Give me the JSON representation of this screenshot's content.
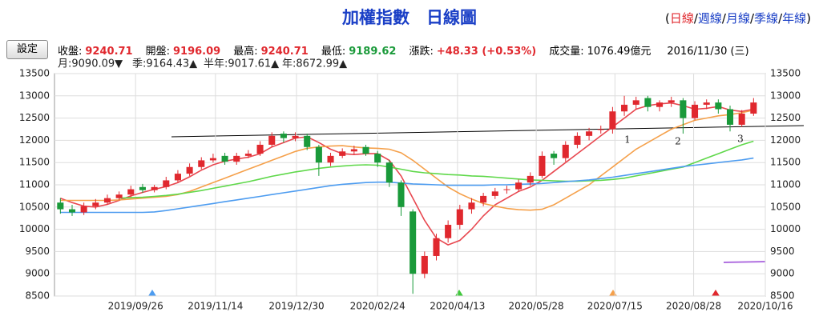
{
  "header": {
    "title": "加權指數　日線圖",
    "links": [
      "日線",
      "週線",
      "月線",
      "季線",
      "年線"
    ],
    "button": "設定",
    "info": [
      {
        "label": "收盤:",
        "value": "9240.71"
      },
      {
        "label": "開盤:",
        "value": "9196.09"
      },
      {
        "label": "最高:",
        "value": "9240.71"
      },
      {
        "label": "最低:",
        "value": "9189.62"
      },
      {
        "label": "漲跌:",
        "value": "+48.33  (+0.53%)"
      },
      {
        "label": "成交量:",
        "value": "1076.49億元"
      },
      {
        "label": "",
        "value": "2016/11/30 (三)"
      }
    ]
  },
  "chart_data": {
    "type": "candlestick",
    "x": [
      0,
      1,
      2,
      3,
      4,
      5,
      6,
      7,
      8,
      9,
      10,
      11,
      12,
      13,
      14,
      15,
      16,
      17,
      18,
      19,
      20,
      21,
      22,
      23,
      24,
      25,
      26,
      27,
      28,
      29,
      30,
      31,
      32,
      33,
      34,
      35,
      36,
      37,
      38,
      39,
      40,
      41,
      42,
      43,
      44,
      45,
      46,
      47,
      48,
      49,
      50,
      51,
      52,
      53,
      54,
      55,
      56,
      57,
      58,
      59
    ],
    "open": [
      10600,
      10450,
      10380,
      10520,
      10600,
      10700,
      10780,
      10950,
      10880,
      10950,
      11100,
      11250,
      11400,
      11550,
      11650,
      11520,
      11650,
      11700,
      11900,
      12150,
      12050,
      12100,
      11850,
      11500,
      11650,
      11750,
      11850,
      11700,
      11500,
      11050,
      10400,
      9000,
      9400,
      9800,
      10100,
      10450,
      10600,
      10750,
      10900,
      10900,
      11050,
      11200,
      11700,
      11600,
      11900,
      12100,
      12250,
      12250,
      12650,
      12800,
      12950,
      12750,
      12850,
      12900,
      12500,
      12800,
      12850,
      12700,
      12350,
      12600
    ],
    "high": [
      10700,
      10550,
      10600,
      10680,
      10780,
      10850,
      10980,
      11020,
      11000,
      11180,
      11330,
      11480,
      11620,
      11700,
      11720,
      11720,
      11780,
      11980,
      12180,
      12200,
      12180,
      12150,
      11900,
      11720,
      11820,
      11880,
      11900,
      11760,
      11560,
      11100,
      10450,
      9500,
      9900,
      10200,
      10550,
      10700,
      10820,
      10930,
      10980,
      11120,
      11280,
      11750,
      11760,
      11980,
      12180,
      12280,
      12330,
      12750,
      13000,
      12980,
      13000,
      12900,
      12980,
      12950,
      12880,
      12920,
      12920,
      12780,
      12680,
      12950
    ],
    "low": [
      10350,
      10300,
      10320,
      10450,
      10550,
      10650,
      10720,
      10820,
      10830,
      10900,
      11050,
      11200,
      11350,
      11500,
      11450,
      11450,
      11600,
      11650,
      11850,
      11950,
      11980,
      11780,
      11200,
      11420,
      11600,
      11680,
      11650,
      11400,
      10950,
      10300,
      8550,
      8900,
      9300,
      9700,
      10000,
      10350,
      10520,
      10680,
      10800,
      10850,
      10980,
      11150,
      11450,
      11520,
      11820,
      12000,
      12150,
      12150,
      12550,
      12700,
      12650,
      12650,
      12750,
      12150,
      12450,
      12700,
      12600,
      12200,
      12300,
      12550
    ],
    "close": [
      10450,
      10380,
      10520,
      10600,
      10700,
      10780,
      10900,
      10880,
      10950,
      11100,
      11250,
      11400,
      11550,
      11600,
      11520,
      11650,
      11700,
      11900,
      12100,
      12050,
      12100,
      11850,
      11500,
      11650,
      11750,
      11800,
      11700,
      11500,
      11050,
      10500,
      9000,
      9400,
      9800,
      10100,
      10450,
      10600,
      10750,
      10850,
      10900,
      11050,
      11200,
      11650,
      11600,
      11900,
      12100,
      12200,
      12250,
      12650,
      12800,
      12900,
      12750,
      12850,
      12900,
      12500,
      12800,
      12850,
      12700,
      12350,
      12600,
      12850
    ],
    "up_color": "#e0282e",
    "down_color": "#1a9a3a",
    "series": [
      {
        "name": "月:9090.09▼",
        "color": "#e8474f",
        "values": [
          10700,
          10600,
          10520,
          10500,
          10560,
          10650,
          10750,
          10830,
          10900,
          10960,
          11050,
          11180,
          11330,
          11450,
          11530,
          11580,
          11620,
          11700,
          11850,
          11950,
          12050,
          12080,
          11950,
          11800,
          11700,
          11680,
          11700,
          11700,
          11550,
          11200,
          10700,
          10200,
          9800,
          9650,
          9750,
          10000,
          10300,
          10550,
          10700,
          10850,
          10950,
          11100,
          11300,
          11500,
          11700,
          11900,
          12100,
          12300,
          12500,
          12700,
          12780,
          12820,
          12840,
          12780,
          12700,
          12720,
          12760,
          12680,
          12650,
          12700
        ]
      },
      {
        "name": "季:9164.43▲",
        "color": "#f5a04a",
        "values": [
          10650,
          10650,
          10650,
          10650,
          10650,
          10660,
          10680,
          10700,
          10720,
          10740,
          10780,
          10850,
          10950,
          11050,
          11150,
          11250,
          11350,
          11450,
          11550,
          11650,
          11750,
          11820,
          11850,
          11870,
          11880,
          11850,
          11830,
          11820,
          11800,
          11720,
          11550,
          11350,
          11150,
          10950,
          10800,
          10680,
          10580,
          10520,
          10470,
          10440,
          10430,
          10450,
          10550,
          10700,
          10850,
          11000,
          11200,
          11400,
          11600,
          11800,
          11950,
          12100,
          12250,
          12350,
          12450,
          12500,
          12550,
          12580,
          12620,
          12680
        ]
      },
      {
        "name": "半年:9017.61▲",
        "color": "#5fd84a",
        "values": [
          null,
          null,
          null,
          null,
          null,
          10700,
          10710,
          10720,
          10740,
          10760,
          10790,
          10830,
          10870,
          10920,
          10970,
          11020,
          11070,
          11130,
          11190,
          11240,
          11290,
          11330,
          11370,
          11400,
          11420,
          11440,
          11450,
          11440,
          11400,
          11350,
          11300,
          11270,
          11250,
          11230,
          11220,
          11200,
          11190,
          11170,
          11150,
          11130,
          11110,
          11100,
          11090,
          11080,
          11080,
          11090,
          11100,
          11120,
          11150,
          11200,
          11250,
          11300,
          11350,
          11400,
          11500,
          11600,
          11700,
          11800,
          11900,
          11980
        ]
      },
      {
        "name": "年:8672.99▲",
        "color": "#4d9cf0",
        "values": [
          10380,
          10380,
          10380,
          10380,
          10380,
          10380,
          10380,
          10380,
          10390,
          10420,
          10460,
          10500,
          10540,
          10580,
          10620,
          10660,
          10700,
          10740,
          10780,
          10820,
          10860,
          10900,
          10940,
          10980,
          11010,
          11030,
          11050,
          11060,
          11060,
          11040,
          11020,
          11010,
          11000,
          10990,
          10990,
          10990,
          10990,
          11000,
          11000,
          11010,
          11020,
          11030,
          11050,
          11070,
          11090,
          11110,
          11140,
          11170,
          11210,
          11250,
          11290,
          11330,
          11370,
          11410,
          11440,
          11470,
          11500,
          11530,
          11560,
          11600
        ]
      }
    ],
    "xlim": [
      -0.5,
      60
    ],
    "xticks": [
      {
        "value": 6.4,
        "label": "2019/09/26"
      },
      {
        "value": 13.2,
        "label": "2019/11/14"
      },
      {
        "value": 20.1,
        "label": "2019/12/30"
      },
      {
        "value": 27,
        "label": "2020/02/24"
      },
      {
        "value": 33.8,
        "label": "2020/04/13"
      },
      {
        "value": 40.5,
        "label": "2020/05/28"
      },
      {
        "value": 47.2,
        "label": "2020/07/15"
      },
      {
        "value": 53.9,
        "label": "2020/08/28"
      },
      {
        "value": 60,
        "label": "2020/10/16"
      }
    ],
    "ylim": [
      8500,
      13500
    ],
    "yticks": [
      8500,
      9000,
      9500,
      10000,
      10500,
      11000,
      11500,
      12000,
      12500,
      13000,
      13500
    ],
    "grid": true,
    "annotations": [
      "1",
      "2",
      "3"
    ]
  }
}
